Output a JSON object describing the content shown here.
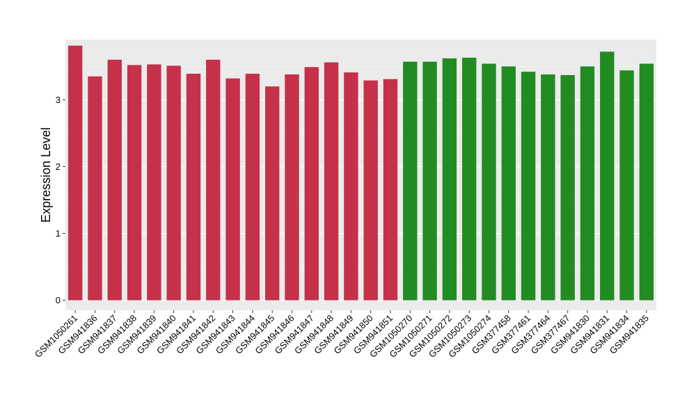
{
  "chart_data": {
    "type": "bar",
    "title": "",
    "xlabel": "",
    "ylabel": "Expression Level",
    "ylim": [
      -0.15,
      3.9
    ],
    "yticks": [
      0,
      1,
      2,
      3
    ],
    "grid": true,
    "categories": [
      "GSM1050261",
      "GSM941836",
      "GSM941837",
      "GSM941838",
      "GSM941839",
      "GSM941840",
      "GSM941841",
      "GSM941842",
      "GSM941843",
      "GSM941844",
      "GSM941845",
      "GSM941846",
      "GSM941847",
      "GSM941848",
      "GSM941849",
      "GSM941850",
      "GSM941851",
      "GSM1050270",
      "GSM1050271",
      "GSM1050272",
      "GSM1050273",
      "GSM1050274",
      "GSM377458",
      "GSM377461",
      "GSM377464",
      "GSM377467",
      "GSM941830",
      "GSM941831",
      "GSM941834",
      "GSM941835"
    ],
    "values": [
      3.81,
      3.35,
      3.6,
      3.52,
      3.53,
      3.51,
      3.39,
      3.6,
      3.32,
      3.39,
      3.2,
      3.38,
      3.49,
      3.56,
      3.41,
      3.29,
      3.31,
      3.57,
      3.57,
      3.62,
      3.63,
      3.54,
      3.5,
      3.42,
      3.38,
      3.37,
      3.5,
      3.72,
      3.44,
      3.54
    ],
    "group_sizes": [
      17,
      13
    ],
    "colors": {
      "group1": "#c5314a",
      "group2": "#228b22",
      "panel_bg": "#ebebeb",
      "grid": "#ffffff",
      "text": "#000000"
    }
  }
}
